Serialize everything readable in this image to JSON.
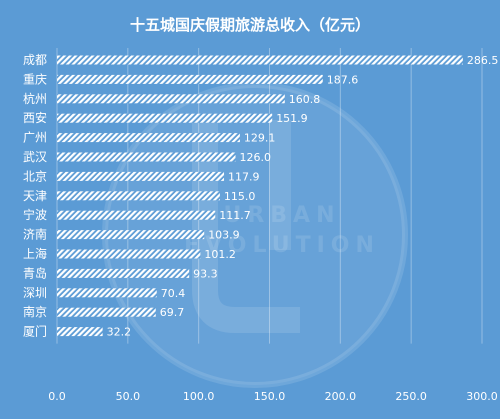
{
  "chart_data": {
    "type": "bar",
    "orientation": "horizontal",
    "title": "十五城国庆假期旅游总收入（亿元）",
    "categories": [
      "成都",
      "重庆",
      "杭州",
      "西安",
      "广州",
      "武汉",
      "北京",
      "天津",
      "宁波",
      "济南",
      "上海",
      "青岛",
      "深圳",
      "南京",
      "厦门"
    ],
    "values": [
      286.5,
      187.6,
      160.8,
      151.9,
      129.1,
      126.0,
      117.9,
      115.0,
      111.7,
      103.9,
      101.2,
      93.3,
      70.4,
      69.7,
      32.2
    ],
    "value_labels": [
      "286.5",
      "187.6",
      "160.8",
      "151.9",
      "129.1",
      "126.0",
      "117.9",
      "115.0",
      "111.7",
      "103.9",
      "101.2",
      "93.3",
      "70.4",
      "69.7",
      "32.2"
    ],
    "xticks": [
      "0.0",
      "50.0",
      "100.0",
      "150.0",
      "200.0",
      "250.0",
      "300.0"
    ],
    "xlim": [
      0,
      300
    ],
    "grid": true,
    "bar_style": "white diagonal hatch",
    "colors": {
      "background": "#5b9bd5",
      "bar": "#ffffff",
      "text": "#ffffff"
    }
  },
  "watermark": {
    "lines": [
      "URBAN",
      "EVOLUTION"
    ]
  }
}
